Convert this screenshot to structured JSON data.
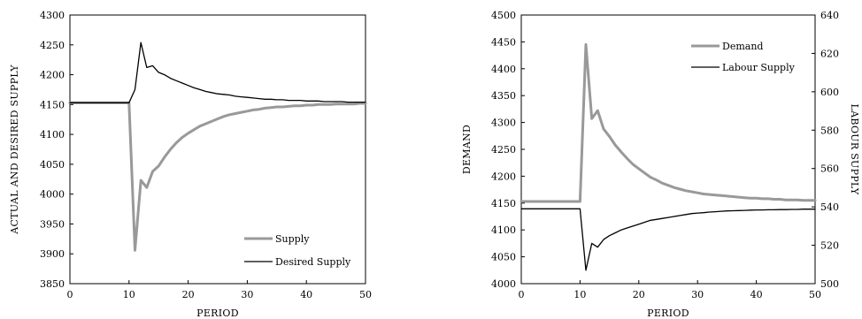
{
  "chart_data": [
    {
      "type": "line",
      "title": "",
      "xlabel": "PERIOD",
      "ylabel": "ACTUAL AND DESIRED SUPPLY",
      "xlim": [
        0,
        50
      ],
      "ylim": [
        3850,
        4300
      ],
      "xticks": [
        0,
        10,
        20,
        30,
        40,
        50
      ],
      "yticks": [
        3850,
        3900,
        3950,
        4000,
        4050,
        4100,
        4150,
        4200,
        4250,
        4300
      ],
      "grid": false,
      "legend_position": "bottom-right",
      "series": [
        {
          "name": "Supply",
          "color": "#999999",
          "width": 3,
          "x": [
            0,
            1,
            2,
            3,
            4,
            5,
            6,
            7,
            8,
            9,
            10,
            11,
            12,
            13,
            14,
            15,
            16,
            17,
            18,
            19,
            20,
            21,
            22,
            23,
            24,
            25,
            26,
            27,
            28,
            29,
            30,
            31,
            32,
            33,
            34,
            35,
            36,
            37,
            38,
            39,
            40,
            41,
            42,
            43,
            44,
            45,
            46,
            47,
            48,
            49,
            50
          ],
          "y": [
            4153,
            4153,
            4153,
            4153,
            4153,
            4153,
            4153,
            4153,
            4153,
            4153,
            4153,
            3906,
            4023,
            4011,
            4038,
            4047,
            4062,
            4075,
            4086,
            4095,
            4102,
            4108,
            4114,
            4118,
            4122,
            4126,
            4130,
            4133,
            4135,
            4137,
            4139,
            4141,
            4142,
            4144,
            4145,
            4146,
            4146,
            4147,
            4148,
            4148,
            4149,
            4149,
            4150,
            4150,
            4150,
            4151,
            4151,
            4151,
            4151,
            4152,
            4152
          ]
        },
        {
          "name": "Desired Supply",
          "color": "#000000",
          "width": 1.3,
          "x": [
            0,
            1,
            2,
            3,
            4,
            5,
            6,
            7,
            8,
            9,
            10,
            11,
            12,
            13,
            14,
            15,
            16,
            17,
            18,
            19,
            20,
            21,
            22,
            23,
            24,
            25,
            26,
            27,
            28,
            29,
            30,
            31,
            32,
            33,
            34,
            35,
            36,
            37,
            38,
            39,
            40,
            41,
            42,
            43,
            44,
            45,
            46,
            47,
            48,
            49,
            50
          ],
          "y": [
            4153,
            4153,
            4153,
            4153,
            4153,
            4153,
            4153,
            4153,
            4153,
            4153,
            4153,
            4175,
            4254,
            4212,
            4215,
            4204,
            4200,
            4194,
            4190,
            4186,
            4182,
            4178,
            4175,
            4172,
            4170,
            4168,
            4167,
            4166,
            4164,
            4163,
            4162,
            4161,
            4160,
            4159,
            4159,
            4158,
            4158,
            4157,
            4157,
            4157,
            4156,
            4156,
            4156,
            4155,
            4155,
            4155,
            4155,
            4154,
            4154,
            4154,
            4154
          ]
        }
      ]
    },
    {
      "type": "line",
      "title": "",
      "xlabel": "PERIOD",
      "ylabel": "DEMAND",
      "y2label": "LABOUR SUPPLY",
      "xlim": [
        0,
        50
      ],
      "ylim": [
        4000,
        4500
      ],
      "y2lim": [
        500,
        640
      ],
      "xticks": [
        0,
        10,
        20,
        30,
        40,
        50
      ],
      "yticks": [
        4000,
        4050,
        4100,
        4150,
        4200,
        4250,
        4300,
        4350,
        4400,
        4450,
        4500
      ],
      "y2ticks": [
        500,
        520,
        540,
        560,
        580,
        600,
        620,
        640
      ],
      "grid": false,
      "legend_position": "top-right",
      "series": [
        {
          "name": "Demand",
          "axis": "left",
          "color": "#999999",
          "width": 3,
          "x": [
            0,
            1,
            2,
            3,
            4,
            5,
            6,
            7,
            8,
            9,
            10,
            11,
            12,
            13,
            14,
            15,
            16,
            17,
            18,
            19,
            20,
            21,
            22,
            23,
            24,
            25,
            26,
            27,
            28,
            29,
            30,
            31,
            32,
            33,
            34,
            35,
            36,
            37,
            38,
            39,
            40,
            41,
            42,
            43,
            44,
            45,
            46,
            47,
            48,
            49,
            50
          ],
          "y": [
            4153,
            4153,
            4153,
            4153,
            4153,
            4153,
            4153,
            4153,
            4153,
            4153,
            4153,
            4445,
            4307,
            4322,
            4288,
            4274,
            4258,
            4245,
            4233,
            4222,
            4214,
            4206,
            4198,
            4193,
            4187,
            4183,
            4179,
            4176,
            4173,
            4171,
            4169,
            4167,
            4166,
            4165,
            4164,
            4163,
            4162,
            4161,
            4160,
            4159,
            4159,
            4158,
            4158,
            4157,
            4157,
            4156,
            4156,
            4156,
            4155,
            4155,
            4155
          ]
        },
        {
          "name": "Labour Supply",
          "axis": "right",
          "color": "#000000",
          "width": 1.3,
          "x": [
            0,
            1,
            2,
            3,
            4,
            5,
            6,
            7,
            8,
            9,
            10,
            11,
            12,
            13,
            14,
            15,
            16,
            17,
            18,
            19,
            20,
            21,
            22,
            23,
            24,
            25,
            26,
            27,
            28,
            29,
            30,
            31,
            32,
            33,
            34,
            35,
            36,
            37,
            38,
            39,
            40,
            41,
            42,
            43,
            44,
            45,
            46,
            47,
            48,
            49,
            50
          ],
          "y": [
            539,
            539,
            539,
            539,
            539,
            539,
            539,
            539,
            539,
            539,
            539,
            507,
            521,
            519,
            523,
            525,
            526.5,
            528,
            529,
            530,
            531,
            532,
            533,
            533.5,
            534,
            534.5,
            535,
            535.5,
            536,
            536.5,
            536.8,
            537,
            537.3,
            537.5,
            537.7,
            537.9,
            538,
            538.1,
            538.2,
            538.3,
            538.4,
            538.4,
            538.5,
            538.5,
            538.6,
            538.6,
            538.7,
            538.7,
            538.8,
            538.8,
            538.8
          ]
        }
      ]
    }
  ]
}
